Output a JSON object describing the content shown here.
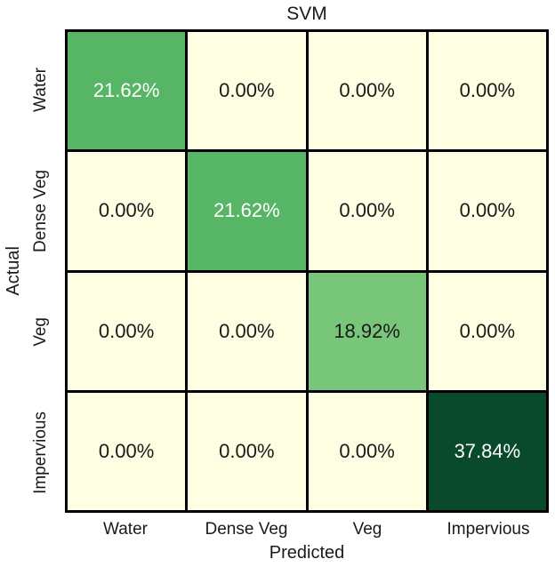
{
  "chart_data": {
    "type": "heatmap",
    "title": "SVM",
    "xlabel": "Predicted",
    "ylabel": "Actual",
    "x_categories": [
      "Water",
      "Dense Veg",
      "Veg",
      "Impervious"
    ],
    "y_categories": [
      "Water",
      "Dense Veg",
      "Veg",
      "Impervious"
    ],
    "values_percent": [
      [
        21.62,
        0.0,
        0.0,
        0.0
      ],
      [
        0.0,
        21.62,
        0.0,
        0.0
      ],
      [
        0.0,
        0.0,
        18.92,
        0.0
      ],
      [
        0.0,
        0.0,
        0.0,
        37.84
      ]
    ],
    "cell_labels": [
      [
        "21.62%",
        "0.00%",
        "0.00%",
        "0.00%"
      ],
      [
        "0.00%",
        "21.62%",
        "0.00%",
        "0.00%"
      ],
      [
        "0.00%",
        "0.00%",
        "18.92%",
        "0.00%"
      ],
      [
        "0.00%",
        "0.00%",
        "0.00%",
        "37.84%"
      ]
    ],
    "colormap": "YlGn",
    "cell_colors": [
      [
        "#57b566",
        "#fefee3",
        "#fefee3",
        "#fefee3"
      ],
      [
        "#fefee3",
        "#57b566",
        "#fefee3",
        "#fefee3"
      ],
      [
        "#fefee3",
        "#fefee3",
        "#78c67a",
        "#fefee3"
      ],
      [
        "#fefee3",
        "#fefee3",
        "#fefee3",
        "#094a2c"
      ]
    ],
    "cell_text_colors": [
      [
        "#ffffff",
        "#1a1a1a",
        "#1a1a1a",
        "#1a1a1a"
      ],
      [
        "#1a1a1a",
        "#ffffff",
        "#1a1a1a",
        "#1a1a1a"
      ],
      [
        "#1a1a1a",
        "#1a1a1a",
        "#1a1a1a",
        "#1a1a1a"
      ],
      [
        "#1a1a1a",
        "#1a1a1a",
        "#1a1a1a",
        "#ffffff"
      ]
    ],
    "grid_line_color": "#000000",
    "background_color": "#ffffff",
    "axis_text_color": "#1a1a1a",
    "legend": "none",
    "grid": "cell-borders-only"
  }
}
